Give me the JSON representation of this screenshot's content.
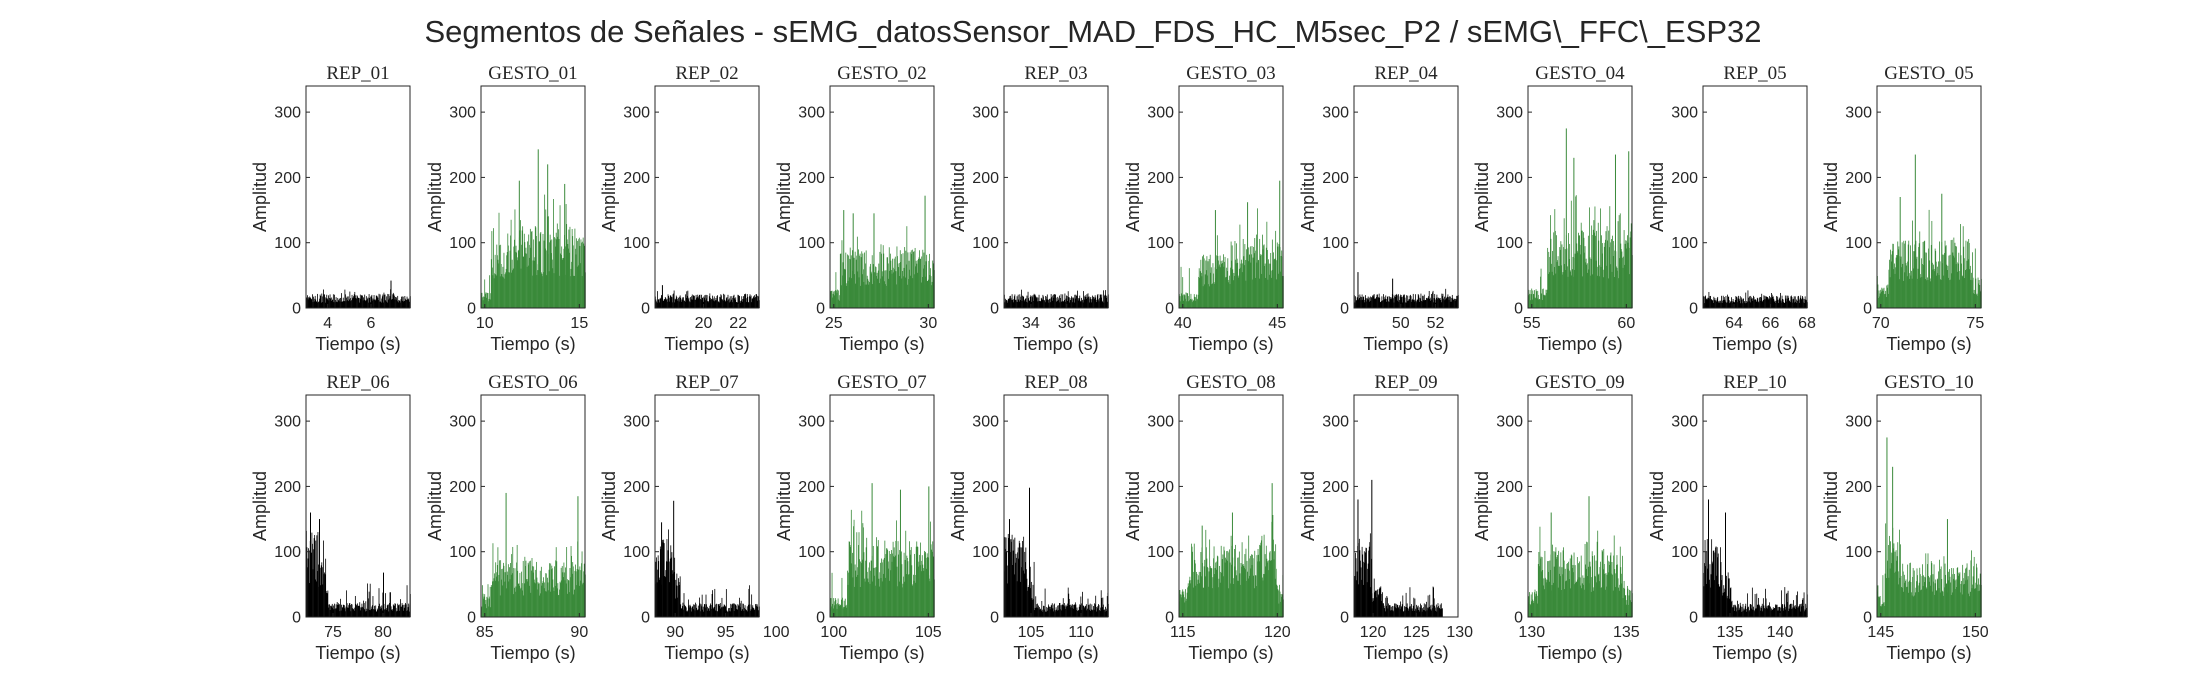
{
  "figure": {
    "suptitle": "Segmentos de Señales - sEMG_datosSensor_MAD_FDS_HC_M5sec_P2 / sEMG\\_FFC\\_ESP32"
  },
  "chart_data": [
    {
      "type": "bar",
      "title": "REP_01",
      "xlabel": "Tiempo (s)",
      "ylabel": "Amplitud",
      "xlim": [
        3,
        7.8
      ],
      "ylim": [
        0,
        340
      ],
      "xticks": [
        4,
        6
      ],
      "yticks": [
        0,
        100,
        200,
        300
      ],
      "color": "#000000",
      "signal": {
        "start": 3,
        "end": 7.8,
        "base": 18,
        "noise": 10,
        "spikes": [
          [
            6.9,
            42
          ]
        ]
      }
    },
    {
      "type": "bar",
      "title": "GESTO_01",
      "xlabel": "Tiempo (s)",
      "ylabel": "Amplitud",
      "xlim": [
        9.8,
        15.3
      ],
      "ylim": [
        0,
        340
      ],
      "xticks": [
        10,
        15
      ],
      "yticks": [
        0,
        100,
        200,
        300
      ],
      "color": "#3a8a3a",
      "signal": {
        "start": 9.8,
        "end": 15.3,
        "segments": [
          [
            9.8,
            10.3,
            20
          ],
          [
            10.3,
            11.2,
            85
          ],
          [
            11.2,
            14.8,
            105
          ],
          [
            14.8,
            15.3,
            90
          ]
        ],
        "noise": 65,
        "spikes": [
          [
            12.8,
            243
          ],
          [
            13.3,
            220
          ],
          [
            11.8,
            195
          ],
          [
            14.2,
            190
          ]
        ]
      }
    },
    {
      "type": "bar",
      "title": "REP_02",
      "xlabel": "Tiempo (s)",
      "ylabel": "Amplitud",
      "xlim": [
        17.2,
        23.2
      ],
      "ylim": [
        0,
        340
      ],
      "xticks": [
        20,
        22
      ],
      "yticks": [
        0,
        100,
        200,
        300
      ],
      "color": "#000000",
      "signal": {
        "start": 17.2,
        "end": 23.2,
        "base": 18,
        "noise": 10,
        "spikes": [
          [
            17.6,
            35
          ]
        ]
      }
    },
    {
      "type": "bar",
      "title": "GESTO_02",
      "xlabel": "Tiempo (s)",
      "ylabel": "Amplitud",
      "xlim": [
        24.8,
        30.3
      ],
      "ylim": [
        0,
        340
      ],
      "xticks": [
        25,
        30
      ],
      "yticks": [
        0,
        100,
        200,
        300
      ],
      "color": "#3a8a3a",
      "signal": {
        "start": 24.8,
        "end": 30.3,
        "segments": [
          [
            24.8,
            25.3,
            25
          ],
          [
            25.3,
            30.3,
            75
          ]
        ],
        "noise": 45,
        "spikes": [
          [
            25.5,
            150
          ],
          [
            26.0,
            145
          ],
          [
            27.1,
            145
          ],
          [
            29.8,
            172
          ]
        ]
      }
    },
    {
      "type": "bar",
      "title": "REP_03",
      "xlabel": "Tiempo (s)",
      "ylabel": "Amplitud",
      "xlim": [
        32.5,
        38.3
      ],
      "ylim": [
        0,
        340
      ],
      "xticks": [
        34,
        36
      ],
      "yticks": [
        0,
        100,
        200,
        300
      ],
      "color": "#000000",
      "signal": {
        "start": 32.5,
        "end": 38.3,
        "base": 18,
        "noise": 9,
        "spikes": []
      }
    },
    {
      "type": "bar",
      "title": "GESTO_03",
      "xlabel": "Tiempo (s)",
      "ylabel": "Amplitud",
      "xlim": [
        39.8,
        45.3
      ],
      "ylim": [
        0,
        340
      ],
      "xticks": [
        40,
        45
      ],
      "yticks": [
        0,
        100,
        200,
        300
      ],
      "color": "#3a8a3a",
      "signal": {
        "start": 39.8,
        "end": 45.3,
        "segments": [
          [
            39.8,
            40.8,
            20
          ],
          [
            40.8,
            42.5,
            70
          ],
          [
            42.5,
            45.3,
            90
          ]
        ],
        "noise": 50,
        "spikes": [
          [
            41.7,
            150
          ],
          [
            43.4,
            162
          ],
          [
            45.1,
            195
          ]
        ]
      }
    },
    {
      "type": "bar",
      "title": "REP_04",
      "xlabel": "Tiempo (s)",
      "ylabel": "Amplitud",
      "xlim": [
        47.3,
        53.3
      ],
      "ylim": [
        0,
        340
      ],
      "xticks": [
        50,
        52
      ],
      "yticks": [
        0,
        100,
        200,
        300
      ],
      "color": "#000000",
      "signal": {
        "start": 47.3,
        "end": 53.3,
        "base": 18,
        "noise": 9,
        "spikes": [
          [
            47.5,
            55
          ],
          [
            49.5,
            45
          ]
        ]
      }
    },
    {
      "type": "bar",
      "title": "GESTO_04",
      "xlabel": "Tiempo (s)",
      "ylabel": "Amplitud",
      "xlim": [
        54.8,
        60.3
      ],
      "ylim": [
        0,
        340
      ],
      "xticks": [
        55,
        60
      ],
      "yticks": [
        0,
        100,
        200,
        300
      ],
      "color": "#3a8a3a",
      "signal": {
        "start": 54.8,
        "end": 60.3,
        "segments": [
          [
            54.8,
            55.8,
            25
          ],
          [
            55.8,
            60.3,
            100
          ]
        ],
        "noise": 60,
        "spikes": [
          [
            56.8,
            275
          ],
          [
            57.2,
            230
          ],
          [
            59.4,
            235
          ],
          [
            60.1,
            240
          ]
        ]
      }
    },
    {
      "type": "bar",
      "title": "REP_05",
      "xlabel": "Tiempo (s)",
      "ylabel": "Amplitud",
      "xlim": [
        62.3,
        68
      ],
      "ylim": [
        0,
        340
      ],
      "xticks": [
        64,
        66,
        68
      ],
      "yticks": [
        0,
        100,
        200,
        300
      ],
      "color": "#000000",
      "signal": {
        "start": 62.3,
        "end": 68,
        "base": 16,
        "noise": 9,
        "spikes": []
      }
    },
    {
      "type": "bar",
      "title": "GESTO_05",
      "xlabel": "Tiempo (s)",
      "ylabel": "Amplitud",
      "xlim": [
        69.8,
        75.3
      ],
      "ylim": [
        0,
        340
      ],
      "xticks": [
        70,
        75
      ],
      "yticks": [
        0,
        100,
        200,
        300
      ],
      "color": "#3a8a3a",
      "signal": {
        "start": 69.8,
        "end": 75.3,
        "segments": [
          [
            69.8,
            70.4,
            30
          ],
          [
            70.4,
            74.8,
            90
          ],
          [
            74.8,
            75.3,
            40
          ]
        ],
        "noise": 50,
        "spikes": [
          [
            71.8,
            235
          ],
          [
            73.2,
            175
          ],
          [
            71.0,
            170
          ]
        ]
      }
    },
    {
      "type": "bar",
      "title": "REP_06",
      "xlabel": "Tiempo (s)",
      "ylabel": "Amplitud",
      "xlim": [
        72.3,
        82.7
      ],
      "ylim": [
        0,
        340
      ],
      "xticks": [
        75,
        80
      ],
      "yticks": [
        0,
        100,
        200,
        300
      ],
      "color": "#000000",
      "signal": {
        "start": 72.3,
        "end": 82.7,
        "segments": [
          [
            72.3,
            73.5,
            110
          ],
          [
            73.5,
            74.5,
            75
          ],
          [
            74.5,
            82.7,
            18
          ]
        ],
        "noise": 35,
        "spikes": [
          [
            72.7,
            160
          ],
          [
            73.6,
            150
          ],
          [
            80.0,
            68
          ]
        ]
      }
    },
    {
      "type": "bar",
      "title": "GESTO_06",
      "xlabel": "Tiempo (s)",
      "ylabel": "Amplitud",
      "xlim": [
        84.8,
        90.3
      ],
      "ylim": [
        0,
        340
      ],
      "xticks": [
        85,
        90
      ],
      "yticks": [
        0,
        100,
        200,
        300
      ],
      "color": "#3a8a3a",
      "signal": {
        "start": 84.8,
        "end": 90.3,
        "segments": [
          [
            84.8,
            85.3,
            30
          ],
          [
            85.3,
            90.3,
            72
          ]
        ],
        "noise": 45,
        "spikes": [
          [
            86.1,
            190
          ],
          [
            89.9,
            185
          ]
        ]
      }
    },
    {
      "type": "bar",
      "title": "REP_07",
      "xlabel": "Tiempo (s)",
      "ylabel": "Amplitud",
      "xlim": [
        88,
        98.3
      ],
      "ylim": [
        0,
        340
      ],
      "xticks": [
        90,
        95,
        100
      ],
      "yticks": [
        0,
        100,
        200,
        300
      ],
      "color": "#000000",
      "signal": {
        "start": 88,
        "end": 98.3,
        "segments": [
          [
            88,
            89.7,
            100
          ],
          [
            89.7,
            90.5,
            60
          ],
          [
            90.5,
            98.3,
            18
          ]
        ],
        "noise": 30,
        "spikes": [
          [
            89.8,
            178
          ],
          [
            88.6,
            145
          ]
        ]
      }
    },
    {
      "type": "bar",
      "title": "GESTO_07",
      "xlabel": "Tiempo (s)",
      "ylabel": "Amplitud",
      "xlim": [
        99.8,
        105.3
      ],
      "ylim": [
        0,
        340
      ],
      "xticks": [
        100,
        105
      ],
      "yticks": [
        0,
        100,
        200,
        300
      ],
      "color": "#3a8a3a",
      "signal": {
        "start": 99.8,
        "end": 105.3,
        "segments": [
          [
            99.8,
            100.7,
            25
          ],
          [
            100.7,
            105.3,
            100
          ]
        ],
        "noise": 55,
        "spikes": [
          [
            102.0,
            205
          ],
          [
            103.5,
            195
          ],
          [
            105.0,
            200
          ]
        ]
      }
    },
    {
      "type": "bar",
      "title": "REP_08",
      "xlabel": "Tiempo (s)",
      "ylabel": "Amplitud",
      "xlim": [
        102.3,
        112.7
      ],
      "ylim": [
        0,
        340
      ],
      "xticks": [
        105,
        110
      ],
      "yticks": [
        0,
        100,
        200,
        300
      ],
      "color": "#000000",
      "signal": {
        "start": 102.3,
        "end": 112.7,
        "segments": [
          [
            102.3,
            104.5,
            105
          ],
          [
            104.5,
            105.3,
            55
          ],
          [
            105.3,
            112.7,
            18
          ]
        ],
        "noise": 30,
        "spikes": [
          [
            104.8,
            198
          ],
          [
            102.8,
            150
          ]
        ]
      }
    },
    {
      "type": "bar",
      "title": "GESTO_08",
      "xlabel": "Tiempo (s)",
      "ylabel": "Amplitud",
      "xlim": [
        114.8,
        120.3
      ],
      "ylim": [
        0,
        340
      ],
      "xticks": [
        115,
        120
      ],
      "yticks": [
        0,
        100,
        200,
        300
      ],
      "color": "#3a8a3a",
      "signal": {
        "start": 114.8,
        "end": 120.3,
        "segments": [
          [
            114.8,
            115.3,
            40
          ],
          [
            115.3,
            120.0,
            95
          ],
          [
            120.0,
            120.3,
            40
          ]
        ],
        "noise": 45,
        "spikes": [
          [
            119.7,
            205
          ],
          [
            117.6,
            160
          ],
          [
            116.0,
            140
          ]
        ]
      }
    },
    {
      "type": "bar",
      "title": "REP_09",
      "xlabel": "Tiempo (s)",
      "ylabel": "Amplitud",
      "xlim": [
        117.8,
        129.8
      ],
      "ylim": [
        0,
        340
      ],
      "xticks": [
        120,
        125,
        130
      ],
      "yticks": [
        0,
        100,
        200,
        300
      ],
      "color": "#000000",
      "signal": {
        "start": 117.8,
        "end": 128,
        "segments": [
          [
            117.8,
            119.8,
            95
          ],
          [
            119.8,
            121.0,
            45
          ],
          [
            121.0,
            128,
            18
          ]
        ],
        "noise": 30,
        "spikes": [
          [
            119.8,
            210
          ],
          [
            118.2,
            180
          ]
        ]
      }
    },
    {
      "type": "bar",
      "title": "GESTO_09",
      "xlabel": "Tiempo (s)",
      "ylabel": "Amplitud",
      "xlim": [
        129.8,
        135.3
      ],
      "ylim": [
        0,
        340
      ],
      "xticks": [
        130,
        135
      ],
      "yticks": [
        0,
        100,
        200,
        300
      ],
      "color": "#3a8a3a",
      "signal": {
        "start": 129.8,
        "end": 135.3,
        "segments": [
          [
            129.8,
            130.3,
            35
          ],
          [
            130.3,
            134.8,
            85
          ],
          [
            134.8,
            135.3,
            40
          ]
        ],
        "noise": 45,
        "spikes": [
          [
            133.0,
            185
          ],
          [
            131.0,
            160
          ]
        ]
      }
    },
    {
      "type": "bar",
      "title": "REP_10",
      "xlabel": "Tiempo (s)",
      "ylabel": "Amplitud",
      "xlim": [
        132.3,
        142.7
      ],
      "ylim": [
        0,
        340
      ],
      "xticks": [
        135,
        140
      ],
      "yticks": [
        0,
        100,
        200,
        300
      ],
      "color": "#000000",
      "signal": {
        "start": 132.3,
        "end": 142.7,
        "segments": [
          [
            132.3,
            134.2,
            100
          ],
          [
            134.2,
            135.2,
            50
          ],
          [
            135.2,
            142.7,
            17
          ]
        ],
        "noise": 30,
        "spikes": [
          [
            132.8,
            180
          ],
          [
            134.5,
            160
          ]
        ]
      }
    },
    {
      "type": "bar",
      "title": "GESTO_10",
      "xlabel": "Tiempo (s)",
      "ylabel": "Amplitud",
      "xlim": [
        144.8,
        150.3
      ],
      "ylim": [
        0,
        340
      ],
      "xticks": [
        145,
        150
      ],
      "yticks": [
        0,
        100,
        200,
        300
      ],
      "color": "#3a8a3a",
      "signal": {
        "start": 144.8,
        "end": 150.3,
        "segments": [
          [
            144.8,
            145.2,
            30
          ],
          [
            145.2,
            146.0,
            110
          ],
          [
            146.0,
            150.3,
            70
          ]
        ],
        "noise": 40,
        "spikes": [
          [
            145.3,
            275
          ],
          [
            145.6,
            230
          ],
          [
            148.5,
            150
          ]
        ]
      }
    }
  ]
}
